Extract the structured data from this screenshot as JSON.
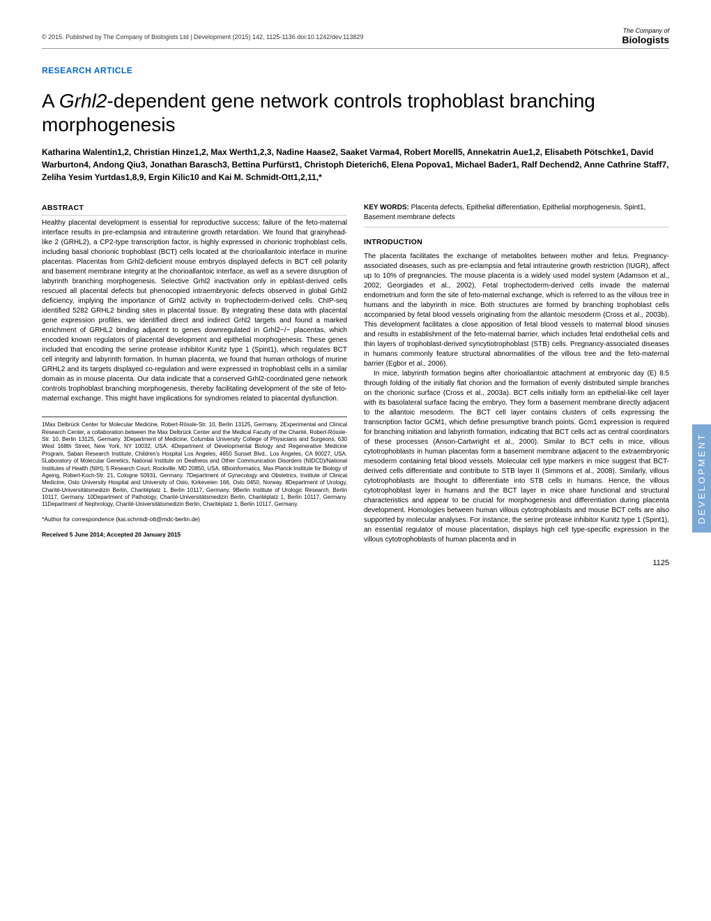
{
  "header": {
    "copyright": "© 2015. Published by The Company of Biologists Ltd | Development (2015) 142, 1125-1136 doi:10.1242/dev.113829",
    "logo_top": "The Company of",
    "logo_bottom": "Biologists"
  },
  "article_type": "RESEARCH ARTICLE",
  "title_pre": "A ",
  "title_italic": "Grhl2",
  "title_post": "-dependent gene network controls trophoblast branching morphogenesis",
  "authors": "Katharina Walentin1,2, Christian Hinze1,2, Max Werth1,2,3, Nadine Haase2, Saaket Varma4, Robert Morell5, Annekatrin Aue1,2, Elisabeth Pötschke1, David Warburton4, Andong Qiu3, Jonathan Barasch3, Bettina Purfürst1, Christoph Dieterich6, Elena Popova1, Michael Bader1, Ralf Dechend2, Anne Cathrine Staff7, Zeliha Yesim Yurtdas1,8,9, Ergin Kilic10 and Kai M. Schmidt-Ott1,2,11,*",
  "abstract": {
    "label": "ABSTRACT",
    "text": "Healthy placental development is essential for reproductive success; failure of the feto-maternal interface results in pre-eclampsia and intrauterine growth retardation. We found that grainyhead-like 2 (GRHL2), a CP2-type transcription factor, is highly expressed in chorionic trophoblast cells, including basal chorionic trophoblast (BCT) cells located at the chorioallantoic interface in murine placentas. Placentas from Grhl2-deficient mouse embryos displayed defects in BCT cell polarity and basement membrane integrity at the chorioallantoic interface, as well as a severe disruption of labyrinth branching morphogenesis. Selective Grhl2 inactivation only in epiblast-derived cells rescued all placental defects but phenocopied intraembryonic defects observed in global Grhl2 deficiency, implying the importance of Grhl2 activity in trophectoderm-derived cells. ChIP-seq identified 5282 GRHL2 binding sites in placental tissue. By integrating these data with placental gene expression profiles, we identified direct and indirect Grhl2 targets and found a marked enrichment of GRHL2 binding adjacent to genes downregulated in Grhl2−/− placentas, which encoded known regulators of placental development and epithelial morphogenesis. These genes included that encoding the serine protease inhibitor Kunitz type 1 (Spint1), which regulates BCT cell integrity and labyrinth formation. In human placenta, we found that human orthologs of murine GRHL2 and its targets displayed co-regulation and were expressed in trophoblast cells in a similar domain as in mouse placenta. Our data indicate that a conserved Grhl2-coordinated gene network controls trophoblast branching morphogenesis, thereby facilitating development of the site of feto-maternal exchange. This might have implications for syndromes related to placental dysfunction."
  },
  "keywords": {
    "label": "KEY WORDS:",
    "text": " Placenta defects, Epithelial differentiation, Epithelial morphogenesis, Spint1, Basement membrane defects"
  },
  "introduction": {
    "label": "INTRODUCTION",
    "para1": "The placenta facilitates the exchange of metabolites between mother and fetus. Pregnancy-associated diseases, such as pre-eclampsia and fetal intrauterine growth restriction (IUGR), affect up to 10% of pregnancies. The mouse placenta is a widely used model system (Adamson et al., 2002; Georgiades et al., 2002). Fetal trophectoderm-derived cells invade the maternal endometrium and form the site of feto-maternal exchange, which is referred to as the villous tree in humans and the labyrinth in mice. Both structures are formed by branching trophoblast cells accompanied by fetal blood vessels originating from the allantoic mesoderm (Cross et al., 2003b). This development facilitates a close apposition of fetal blood vessels to maternal blood sinuses and results in establishment of the feto-maternal barrier, which includes fetal endothelial cells and thin layers of trophoblast-derived syncytiotrophoblast (STB) cells. Pregnancy-associated diseases in humans commonly feature structural abnormalities of the villous tree and the feto-maternal barrier (Egbor et al., 2006).",
    "para2": "In mice, labyrinth formation begins after chorioallantoic attachment at embryonic day (E) 8.5 through folding of the initially flat chorion and the formation of evenly distributed simple branches on the chorionic surface (Cross et al., 2003a). BCT cells initially form an epithelial-like cell layer with its basolateral surface facing the embryo. They form a basement membrane directly adjacent to the allantoic mesoderm. The BCT cell layer contains clusters of cells expressing the transcription factor GCM1, which define presumptive branch points. Gcm1 expression is required for branching initiation and labyrinth formation, indicating that BCT cells act as central coordinators of these processes (Anson-Cartwright et al., 2000). Similar to BCT cells in mice, villous cytotrophoblasts in human placentas form a basement membrane adjacent to the extraembryonic mesoderm containing fetal blood vessels. Molecular cell type markers in mice suggest that BCT-derived cells differentiate and contribute to STB layer II (Simmons et al., 2008). Similarly, villous cytotrophoblasts are thought to differentiate into STB cells in humans. Hence, the villous cytotrophoblast layer in humans and the BCT layer in mice share functional and structural characteristics and appear to be crucial for morphogenesis and differentiation during placenta development. Homologies between human villous cytotrophoblasts and mouse BCT cells are also supported by molecular analyses. For instance, the serine protease inhibitor Kunitz type 1 (Spint1), an essential regulator of mouse placentation, displays high cell type-specific expression in the villous cytotrophoblasts of human placenta and in"
  },
  "affiliations": "1Max Delbrück Center for Molecular Medicine, Robert-Rössle-Str. 10, Berlin 13125, Germany. 2Experimental and Clinical Research Center, a collaboration between the Max Delbrück Center and the Medical Faculty of the Charité, Robert-Rössle-Str. 10, Berlin 13125, Germany. 3Department of Medicine, Columbia University College of Physicians and Surgeons, 630 West 168th Street, New York, NY 10032, USA. 4Department of Developmental Biology and Regenerative Medicine Program, Saban Research Institute, Children's Hospital Los Angeles, 4650 Sunset Blvd., Los Angeles, CA 90027, USA. 5Laboratory of Molecular Genetics, National Institute on Deafness and Other Communication Disorders (NIDCD)/National Institutes of Health (NIH), 5 Research Court, Rockville, MD 20850, USA. 6Bioinformatics, Max Planck Institute for Biology of Ageing, Robert-Koch-Str. 21, Cologne 50931, Germany. 7Department of Gynecology and Obstetrics, Institute of Clinical Medicine, Oslo University Hospital and University of Oslo, Kirkeveien 166, Oslo 0450, Norway. 8Department of Urology, Charité-Universitätsmedizin Berlin, Charitéplatz 1, Berlin 10117, Germany. 9Berlin Institute of Urologic Research, Berlin 10117, Germany. 10Department of Pathology, Charité-Universitätsmedizin Berlin, Charitéplatz 1, Berlin 10117, Germany. 11Department of Nephrology, Charité-Universitätsmedizin Berlin, Charitéplatz 1, Berlin 10117, Germany.",
  "correspondence": "*Author for correspondence (kai.schmidt-ott@mdc-berlin.de)",
  "received": "Received 5 June 2014; Accepted 20 January 2015",
  "page_number": "1125",
  "side_banner": "DEVELOPMENT"
}
